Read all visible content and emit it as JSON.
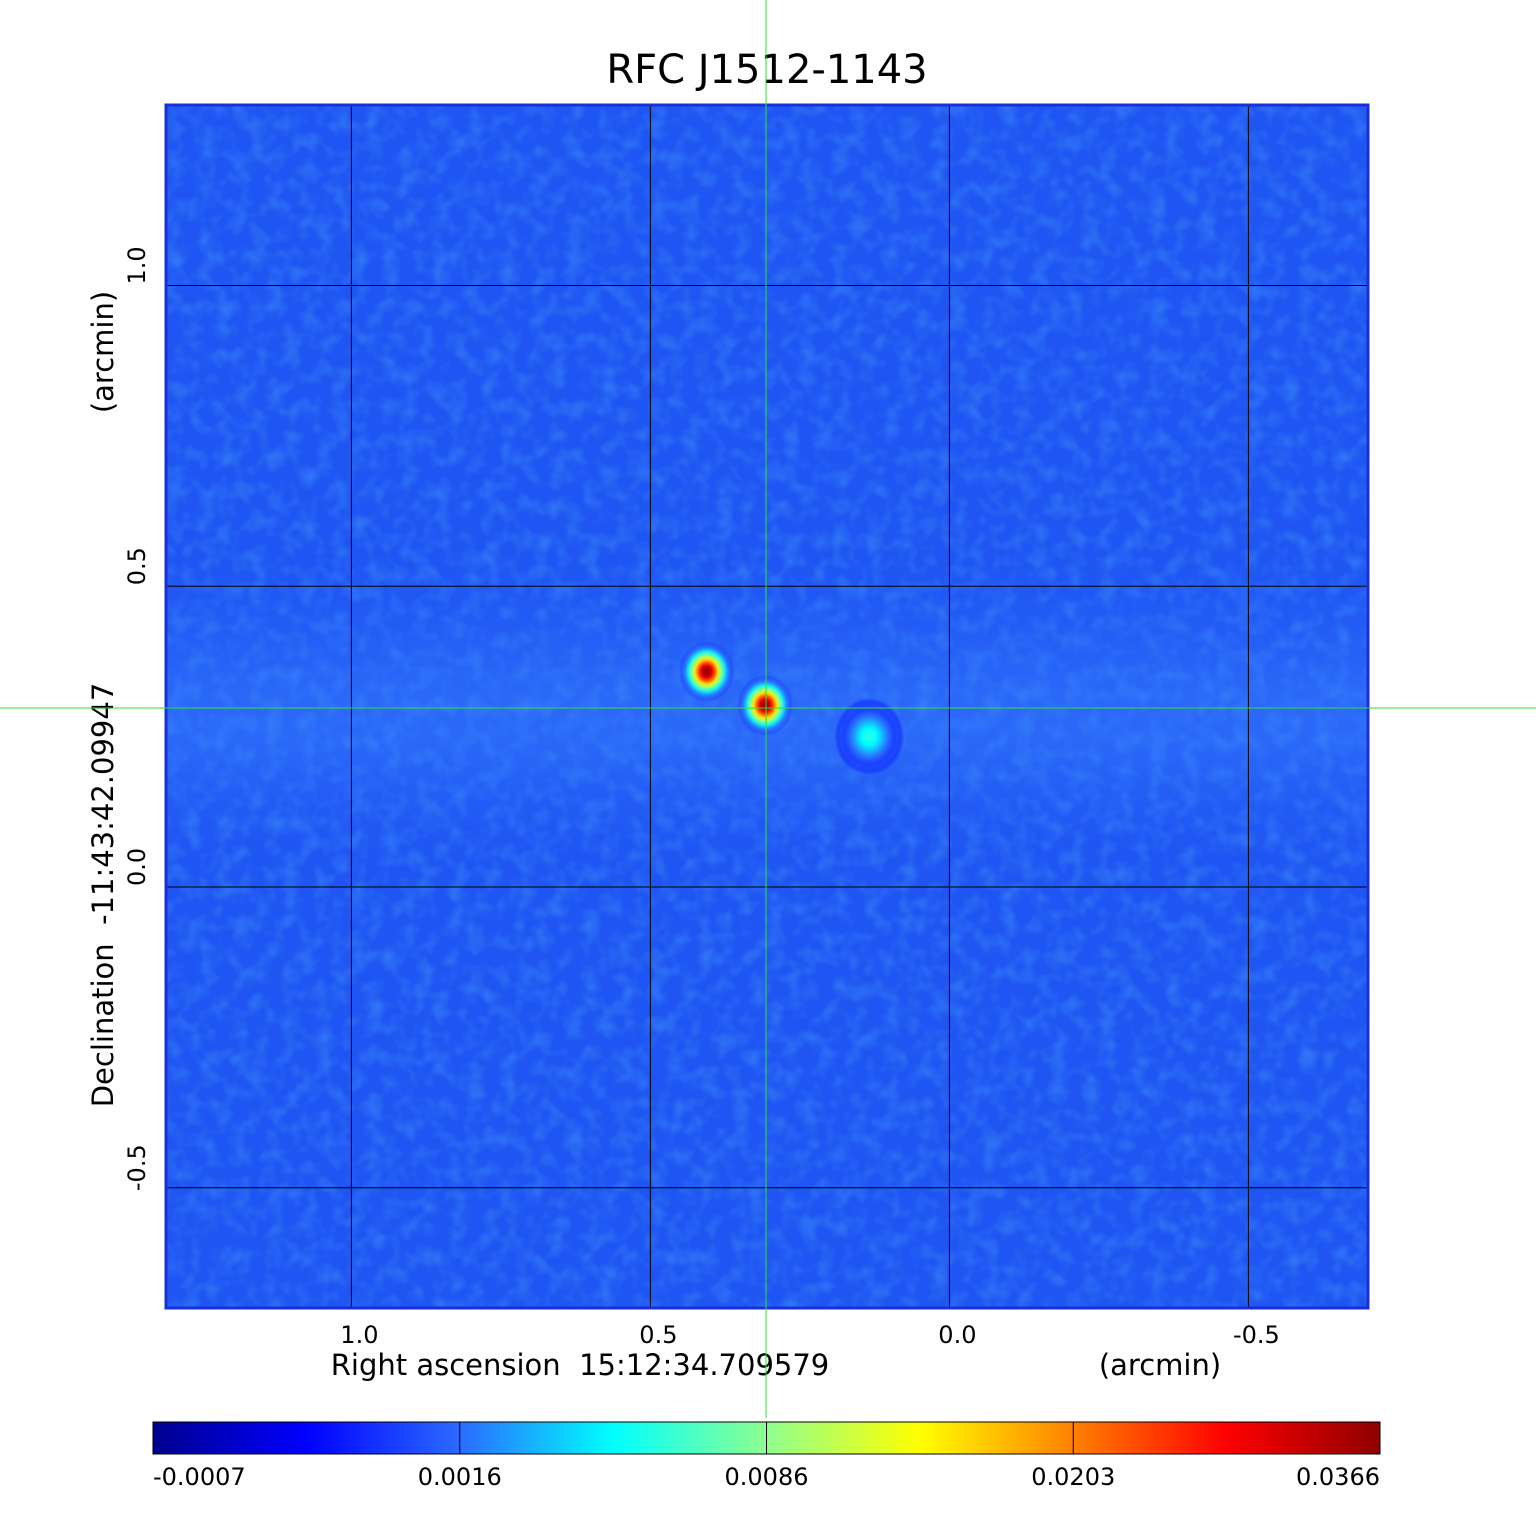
{
  "chart_data": {
    "type": "image",
    "title": "RFC J1512-1143",
    "x_label": "Right ascension  15:12:34.709579",
    "x_unit": "(arcmin)",
    "y_label": "Declination  -11:43:42.09947",
    "y_unit": "(arcmin)",
    "xlim": [
      1.31,
      -0.7
    ],
    "ylim": [
      -0.7,
      1.3
    ],
    "xticks": [
      {
        "value": 1,
        "label": "1.0"
      },
      0.5,
      {
        "value": 0,
        "label": "0.0"
      },
      -0.5
    ],
    "yticks": [
      -0.5,
      {
        "value": 0,
        "label": "0.0"
      },
      0.5,
      {
        "value": 1,
        "label": "1.0"
      }
    ],
    "grid": true,
    "components": [
      {
        "x": 0.406,
        "y": 0.358,
        "peak": 0.0366
      },
      {
        "x": 0.308,
        "y": 0.302,
        "peak": 0.0366
      },
      {
        "x": 0.134,
        "y": 0.25,
        "peak": 0.006
      }
    ],
    "colorbar": {
      "ticks": [
        -0.0007,
        0.0016,
        0.0086,
        0.0203,
        0.0366
      ],
      "colors": [
        "#00008f",
        "#0000ff",
        "#2b6bff",
        "#00ffff",
        "#8fff8f",
        "#ffff00",
        "#ff8000",
        "#ff0000",
        "#8f0000"
      ]
    },
    "title_color": "#1414d2",
    "crosshair_color": "#33dd33"
  }
}
